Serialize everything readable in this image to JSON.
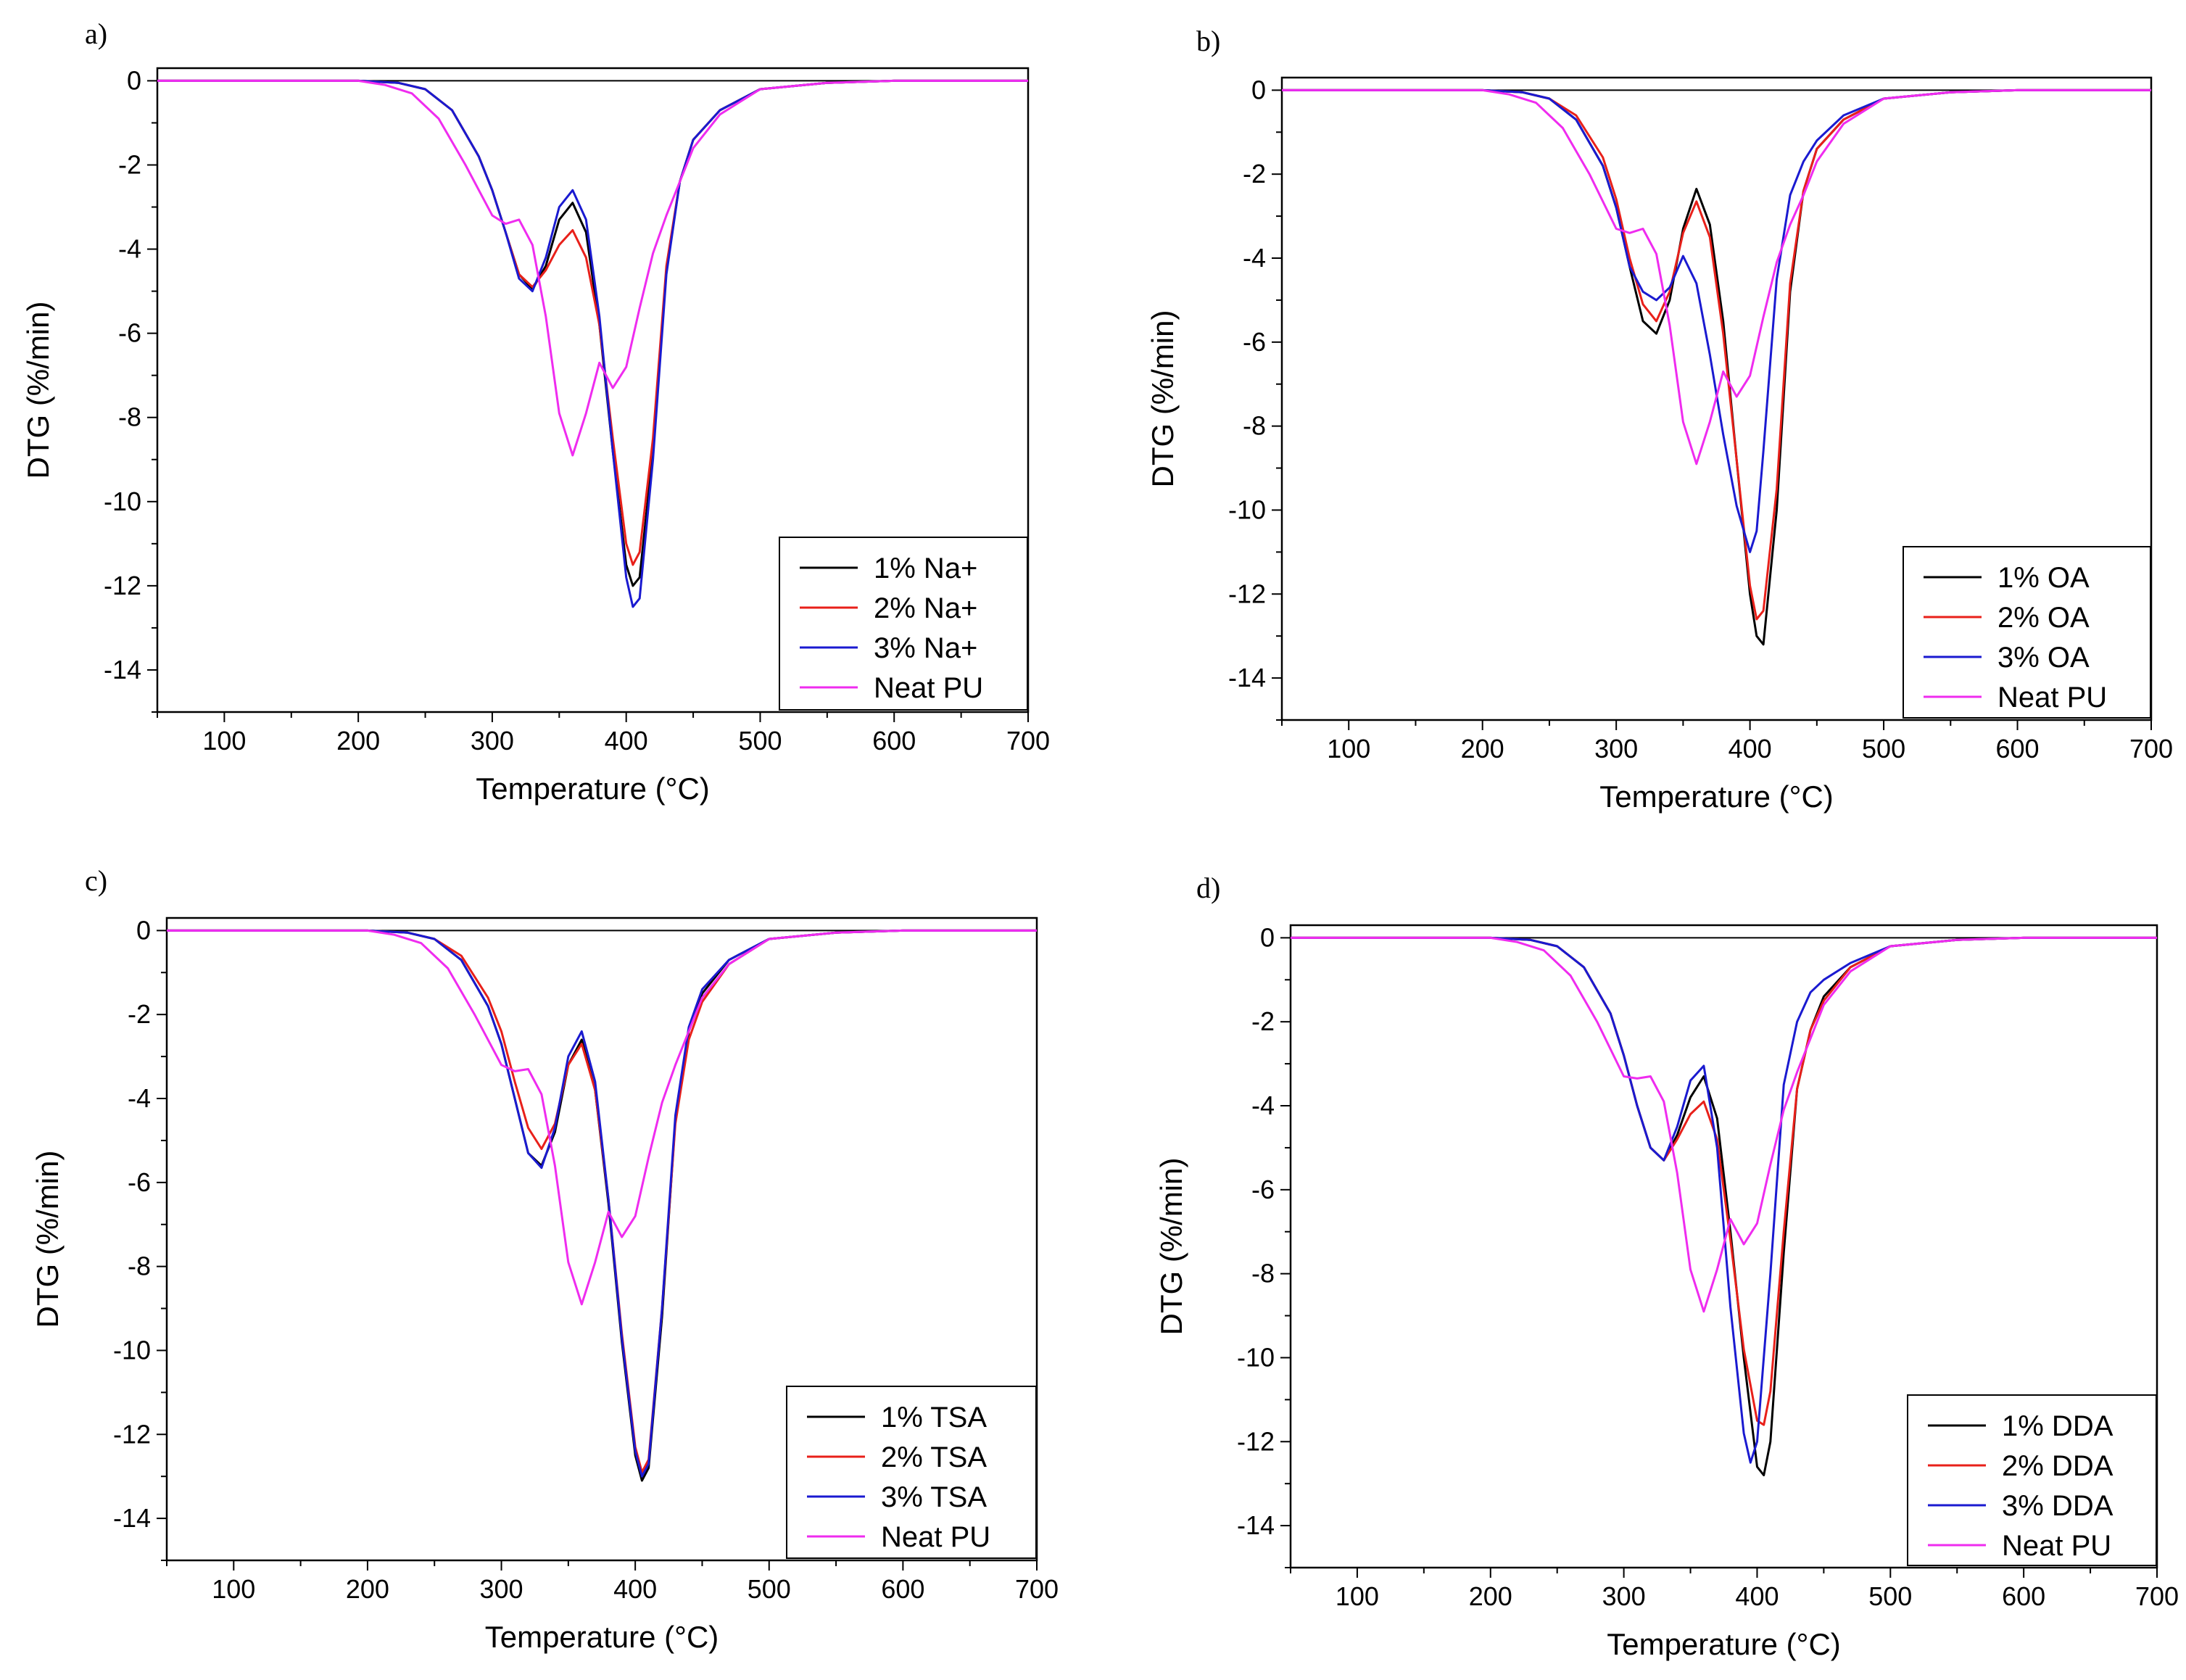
{
  "figure": {
    "colors": {
      "axis": "#000000",
      "s1": "#000000",
      "s2": "#e8201a",
      "s3": "#1a1ad0",
      "neat": "#ef2cef"
    }
  },
  "chart_data": [
    {
      "panel": "a)",
      "type": "line",
      "xlabel": "Temperature (°C)",
      "ylabel": "DTG (%/min)",
      "xlim": [
        50,
        700
      ],
      "ylim": [
        -15,
        0.3
      ],
      "xticks": [
        100,
        200,
        300,
        400,
        500,
        600,
        700
      ],
      "yticks": [
        0,
        -2,
        -4,
        -6,
        -8,
        -10,
        -12,
        -14
      ],
      "legend_position": "bottom-right",
      "series": [
        {
          "name": "1% Na+",
          "color": "#000000",
          "x": [
            50,
            200,
            230,
            250,
            270,
            290,
            300,
            310,
            320,
            330,
            340,
            350,
            360,
            370,
            380,
            390,
            400,
            405,
            410,
            420,
            430,
            440,
            450,
            470,
            500,
            550,
            600,
            700
          ],
          "y": [
            0,
            0,
            -0.05,
            -0.2,
            -0.7,
            -1.8,
            -2.6,
            -3.6,
            -4.6,
            -4.95,
            -4.4,
            -3.3,
            -2.9,
            -3.6,
            -5.8,
            -8.8,
            -11.5,
            -12.0,
            -11.8,
            -8.8,
            -4.5,
            -2.4,
            -1.4,
            -0.7,
            -0.2,
            -0.05,
            0,
            0
          ]
        },
        {
          "name": "2% Na+",
          "color": "#e8201a",
          "x": [
            50,
            200,
            230,
            250,
            270,
            290,
            300,
            310,
            320,
            330,
            340,
            350,
            360,
            370,
            380,
            390,
            400,
            405,
            410,
            420,
            430,
            440,
            450,
            470,
            500,
            550,
            600,
            700
          ],
          "y": [
            0,
            0,
            -0.05,
            -0.2,
            -0.7,
            -1.8,
            -2.6,
            -3.6,
            -4.6,
            -4.9,
            -4.5,
            -3.9,
            -3.55,
            -4.2,
            -5.8,
            -8.5,
            -11.0,
            -11.5,
            -11.2,
            -8.5,
            -4.4,
            -2.4,
            -1.4,
            -0.7,
            -0.2,
            -0.05,
            0,
            0
          ]
        },
        {
          "name": "3% Na+",
          "color": "#1a1ad0",
          "x": [
            50,
            200,
            230,
            250,
            270,
            290,
            300,
            310,
            320,
            330,
            340,
            350,
            360,
            370,
            380,
            390,
            400,
            405,
            410,
            420,
            430,
            440,
            450,
            470,
            500,
            550,
            600,
            700
          ],
          "y": [
            0,
            0,
            -0.05,
            -0.2,
            -0.7,
            -1.8,
            -2.6,
            -3.6,
            -4.7,
            -5.0,
            -4.2,
            -3.0,
            -2.6,
            -3.3,
            -5.6,
            -8.8,
            -11.8,
            -12.5,
            -12.3,
            -9.0,
            -4.6,
            -2.4,
            -1.4,
            -0.7,
            -0.2,
            -0.05,
            0,
            0
          ]
        },
        {
          "name": "Neat PU",
          "color": "#ef2cef",
          "x": [
            50,
            200,
            220,
            240,
            260,
            280,
            300,
            310,
            320,
            330,
            340,
            350,
            360,
            370,
            380,
            390,
            400,
            410,
            420,
            430,
            440,
            450,
            470,
            500,
            550,
            600,
            700
          ],
          "y": [
            0,
            0,
            -0.1,
            -0.3,
            -0.9,
            -2.0,
            -3.2,
            -3.4,
            -3.3,
            -3.9,
            -5.6,
            -7.9,
            -8.9,
            -7.9,
            -6.7,
            -7.3,
            -6.8,
            -5.4,
            -4.1,
            -3.2,
            -2.4,
            -1.6,
            -0.8,
            -0.2,
            -0.05,
            0,
            0
          ]
        }
      ]
    },
    {
      "panel": "b)",
      "type": "line",
      "xlabel": "Temperature (°C)",
      "ylabel": "DTG (%/min)",
      "xlim": [
        50,
        700
      ],
      "ylim": [
        -15,
        0.3
      ],
      "xticks": [
        100,
        200,
        300,
        400,
        500,
        600,
        700
      ],
      "yticks": [
        0,
        -2,
        -4,
        -6,
        -8,
        -10,
        -12,
        -14
      ],
      "legend_position": "bottom-right",
      "series": [
        {
          "name": "1% OA",
          "color": "#000000",
          "x": [
            50,
            200,
            230,
            250,
            270,
            290,
            300,
            310,
            320,
            330,
            340,
            350,
            360,
            370,
            380,
            390,
            400,
            405,
            410,
            420,
            430,
            440,
            450,
            470,
            500,
            550,
            600,
            700
          ],
          "y": [
            0,
            0,
            -0.05,
            -0.2,
            -0.7,
            -1.8,
            -2.8,
            -4.2,
            -5.5,
            -5.8,
            -5.0,
            -3.3,
            -2.35,
            -3.2,
            -5.5,
            -8.8,
            -12.0,
            -13.0,
            -13.2,
            -10.0,
            -4.8,
            -2.4,
            -1.4,
            -0.7,
            -0.2,
            -0.05,
            0,
            0
          ]
        },
        {
          "name": "2% OA",
          "color": "#e8201a",
          "x": [
            50,
            200,
            230,
            250,
            270,
            290,
            300,
            310,
            320,
            330,
            340,
            350,
            360,
            370,
            380,
            390,
            400,
            405,
            410,
            420,
            430,
            440,
            450,
            470,
            500,
            550,
            600,
            700
          ],
          "y": [
            0,
            0,
            -0.05,
            -0.2,
            -0.6,
            -1.6,
            -2.6,
            -4.0,
            -5.1,
            -5.5,
            -4.8,
            -3.4,
            -2.65,
            -3.5,
            -5.8,
            -8.8,
            -11.8,
            -12.6,
            -12.4,
            -9.5,
            -4.6,
            -2.4,
            -1.4,
            -0.7,
            -0.2,
            -0.05,
            0,
            0
          ]
        },
        {
          "name": "3% OA",
          "color": "#1a1ad0",
          "x": [
            50,
            200,
            230,
            250,
            270,
            290,
            300,
            310,
            320,
            330,
            340,
            350,
            360,
            370,
            380,
            390,
            400,
            405,
            410,
            420,
            430,
            440,
            450,
            470,
            500,
            550,
            600,
            700
          ],
          "y": [
            0,
            0,
            -0.05,
            -0.2,
            -0.7,
            -1.8,
            -2.8,
            -4.2,
            -4.8,
            -5.0,
            -4.7,
            -3.95,
            -4.6,
            -6.3,
            -8.2,
            -9.9,
            -11.0,
            -10.5,
            -8.6,
            -4.5,
            -2.5,
            -1.7,
            -1.2,
            -0.6,
            -0.2,
            -0.05,
            0,
            0
          ]
        },
        {
          "name": "Neat PU",
          "color": "#ef2cef",
          "x": [
            50,
            200,
            220,
            240,
            260,
            280,
            300,
            310,
            320,
            330,
            340,
            350,
            360,
            370,
            380,
            390,
            400,
            410,
            420,
            430,
            440,
            450,
            470,
            500,
            550,
            600,
            700
          ],
          "y": [
            0,
            0,
            -0.1,
            -0.3,
            -0.9,
            -2.0,
            -3.3,
            -3.4,
            -3.3,
            -3.9,
            -5.6,
            -7.9,
            -8.9,
            -7.9,
            -6.7,
            -7.3,
            -6.8,
            -5.4,
            -4.1,
            -3.2,
            -2.5,
            -1.7,
            -0.8,
            -0.2,
            -0.05,
            0,
            0
          ]
        }
      ]
    },
    {
      "panel": "c)",
      "type": "line",
      "xlabel": "Temperature (°C)",
      "ylabel": "DTG (%/min)",
      "xlim": [
        50,
        700
      ],
      "ylim": [
        -15,
        0.3
      ],
      "xticks": [
        100,
        200,
        300,
        400,
        500,
        600,
        700
      ],
      "yticks": [
        0,
        -2,
        -4,
        -6,
        -8,
        -10,
        -12,
        -14
      ],
      "legend_position": "bottom-right",
      "series": [
        {
          "name": "1% TSA",
          "color": "#000000",
          "x": [
            50,
            200,
            230,
            250,
            270,
            290,
            300,
            310,
            320,
            330,
            340,
            350,
            360,
            370,
            380,
            390,
            400,
            405,
            410,
            420,
            430,
            440,
            450,
            470,
            500,
            550,
            600,
            700
          ],
          "y": [
            0,
            0,
            -0.05,
            -0.2,
            -0.7,
            -1.8,
            -2.7,
            -4.0,
            -5.3,
            -5.6,
            -4.8,
            -3.2,
            -2.6,
            -3.8,
            -6.5,
            -9.8,
            -12.5,
            -13.1,
            -12.8,
            -9.2,
            -4.5,
            -2.4,
            -1.5,
            -0.7,
            -0.2,
            -0.05,
            0,
            0
          ]
        },
        {
          "name": "2% TSA",
          "color": "#e8201a",
          "x": [
            50,
            200,
            230,
            250,
            270,
            290,
            300,
            310,
            320,
            330,
            340,
            350,
            360,
            370,
            380,
            390,
            400,
            405,
            410,
            420,
            430,
            440,
            450,
            470,
            500,
            550,
            600,
            700
          ],
          "y": [
            0,
            0,
            -0.05,
            -0.2,
            -0.6,
            -1.6,
            -2.4,
            -3.6,
            -4.7,
            -5.2,
            -4.6,
            -3.2,
            -2.7,
            -3.8,
            -6.4,
            -9.6,
            -12.3,
            -12.9,
            -12.6,
            -9.0,
            -4.6,
            -2.6,
            -1.7,
            -0.8,
            -0.2,
            -0.05,
            0,
            0
          ]
        },
        {
          "name": "3% TSA",
          "color": "#1a1ad0",
          "x": [
            50,
            200,
            230,
            250,
            270,
            290,
            300,
            310,
            320,
            330,
            340,
            350,
            360,
            370,
            380,
            390,
            400,
            405,
            410,
            420,
            430,
            440,
            450,
            470,
            500,
            550,
            600,
            700
          ],
          "y": [
            0,
            0,
            -0.05,
            -0.2,
            -0.7,
            -1.8,
            -2.7,
            -4.0,
            -5.3,
            -5.65,
            -4.7,
            -3.0,
            -2.4,
            -3.6,
            -6.4,
            -9.7,
            -12.4,
            -13.0,
            -12.7,
            -9.0,
            -4.4,
            -2.3,
            -1.4,
            -0.7,
            -0.2,
            -0.05,
            0,
            0
          ]
        },
        {
          "name": "Neat PU",
          "color": "#ef2cef",
          "x": [
            50,
            200,
            220,
            240,
            260,
            280,
            300,
            310,
            320,
            330,
            340,
            350,
            360,
            370,
            380,
            390,
            400,
            410,
            420,
            430,
            440,
            450,
            470,
            500,
            550,
            600,
            700
          ],
          "y": [
            0,
            0,
            -0.1,
            -0.3,
            -0.9,
            -2.0,
            -3.2,
            -3.35,
            -3.3,
            -3.9,
            -5.6,
            -7.9,
            -8.9,
            -7.9,
            -6.7,
            -7.3,
            -6.8,
            -5.4,
            -4.1,
            -3.2,
            -2.4,
            -1.6,
            -0.8,
            -0.2,
            -0.05,
            0,
            0
          ]
        }
      ]
    },
    {
      "panel": "d)",
      "type": "line",
      "xlabel": "Temperature (°C)",
      "ylabel": "DTG (%/min)",
      "xlim": [
        50,
        700
      ],
      "ylim": [
        -15,
        0.3
      ],
      "xticks": [
        100,
        200,
        300,
        400,
        500,
        600,
        700
      ],
      "yticks": [
        0,
        -2,
        -4,
        -6,
        -8,
        -10,
        -12,
        -14
      ],
      "legend_position": "bottom-right",
      "series": [
        {
          "name": "1% DDA",
          "color": "#000000",
          "x": [
            50,
            200,
            230,
            250,
            270,
            290,
            300,
            310,
            320,
            330,
            340,
            350,
            360,
            370,
            380,
            390,
            400,
            405,
            410,
            420,
            430,
            440,
            450,
            470,
            500,
            550,
            600,
            700
          ],
          "y": [
            0,
            0,
            -0.05,
            -0.2,
            -0.7,
            -1.8,
            -2.8,
            -4.0,
            -5.0,
            -5.3,
            -4.7,
            -3.8,
            -3.3,
            -4.3,
            -7.0,
            -10.0,
            -12.6,
            -12.8,
            -12.0,
            -7.5,
            -3.6,
            -2.2,
            -1.4,
            -0.7,
            -0.2,
            -0.05,
            0,
            0
          ]
        },
        {
          "name": "2% DDA",
          "color": "#e8201a",
          "x": [
            50,
            200,
            230,
            250,
            270,
            290,
            300,
            310,
            320,
            330,
            340,
            350,
            360,
            370,
            380,
            390,
            400,
            405,
            410,
            420,
            430,
            440,
            450,
            470,
            500,
            550,
            600,
            700
          ],
          "y": [
            0,
            0,
            -0.05,
            -0.2,
            -0.7,
            -1.8,
            -2.8,
            -4.0,
            -5.0,
            -5.3,
            -4.8,
            -4.2,
            -3.9,
            -4.8,
            -7.2,
            -9.8,
            -11.5,
            -11.6,
            -10.8,
            -7.0,
            -3.6,
            -2.2,
            -1.5,
            -0.7,
            -0.2,
            -0.05,
            0,
            0
          ]
        },
        {
          "name": "3% DDA",
          "color": "#1a1ad0",
          "x": [
            50,
            200,
            230,
            250,
            270,
            290,
            300,
            310,
            320,
            330,
            340,
            350,
            360,
            370,
            380,
            390,
            395,
            400,
            410,
            420,
            430,
            440,
            450,
            470,
            500,
            550,
            600,
            700
          ],
          "y": [
            0,
            0,
            -0.05,
            -0.2,
            -0.7,
            -1.8,
            -2.8,
            -4.0,
            -5.0,
            -5.3,
            -4.5,
            -3.4,
            -3.05,
            -5.0,
            -8.8,
            -11.8,
            -12.5,
            -12.0,
            -8.0,
            -3.5,
            -2.0,
            -1.3,
            -1.0,
            -0.6,
            -0.2,
            -0.05,
            0,
            0
          ]
        },
        {
          "name": "Neat PU",
          "color": "#ef2cef",
          "x": [
            50,
            200,
            220,
            240,
            260,
            280,
            300,
            310,
            320,
            330,
            340,
            350,
            360,
            370,
            380,
            390,
            400,
            410,
            420,
            430,
            440,
            450,
            470,
            500,
            550,
            600,
            700
          ],
          "y": [
            0,
            0,
            -0.1,
            -0.3,
            -0.9,
            -2.0,
            -3.3,
            -3.35,
            -3.3,
            -3.9,
            -5.6,
            -7.9,
            -8.9,
            -7.9,
            -6.7,
            -7.3,
            -6.8,
            -5.4,
            -4.1,
            -3.2,
            -2.4,
            -1.6,
            -0.8,
            -0.2,
            -0.05,
            0,
            0
          ]
        }
      ]
    }
  ]
}
